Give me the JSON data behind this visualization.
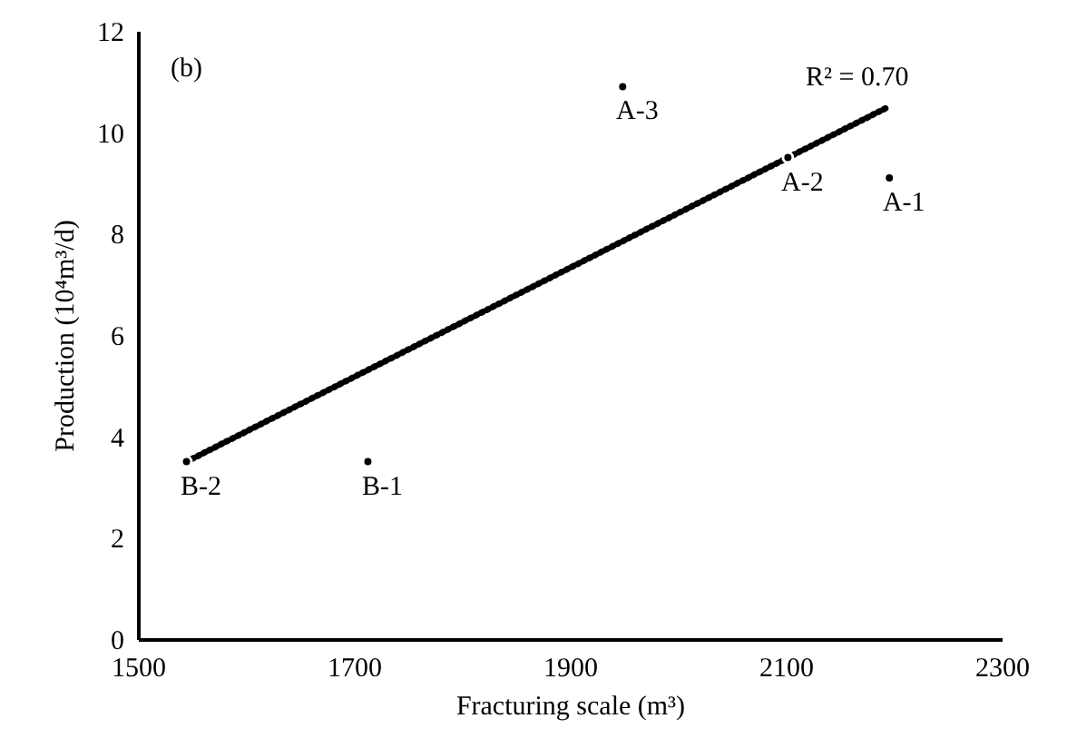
{
  "chart_data": {
    "type": "scatter",
    "xlabel": "Fracturing scale (m³)",
    "ylabel": "Production (10⁴m³/d)",
    "series": [
      {
        "color": "#000000",
        "x": [
          2196,
          2102,
          1949,
          1713,
          1545
        ],
        "values": [
          9.1,
          9.5,
          10.9,
          3.5,
          3.5
        ],
        "marker": "circle"
      },
      {
        "type": "line",
        "color": "#000000",
        "x": [
          1545,
          2195
        ],
        "values": [
          3.5,
          10.5
        ],
        "line_style": "dotted"
      }
    ],
    "annotations": [
      "(b)",
      "R² = 0.70",
      {
        "text": "A-1",
        "x": 2196,
        "y": 9.1
      },
      {
        "text": "A-2",
        "x": 2102,
        "y": 9.5
      },
      {
        "text": "A-3",
        "x": 1949,
        "y": 10.9
      },
      {
        "text": "B-1",
        "x": 1713,
        "y": 3.5
      },
      {
        "text": "B-2",
        "x": 1545,
        "y": 3.5
      }
    ],
    "xlim": [
      1500,
      2300
    ],
    "xticks": [
      1500,
      1700,
      1900,
      2100,
      2300
    ],
    "ylim": [
      0,
      12
    ],
    "yticks": [
      0,
      2,
      4,
      6,
      8,
      10,
      12
    ]
  }
}
